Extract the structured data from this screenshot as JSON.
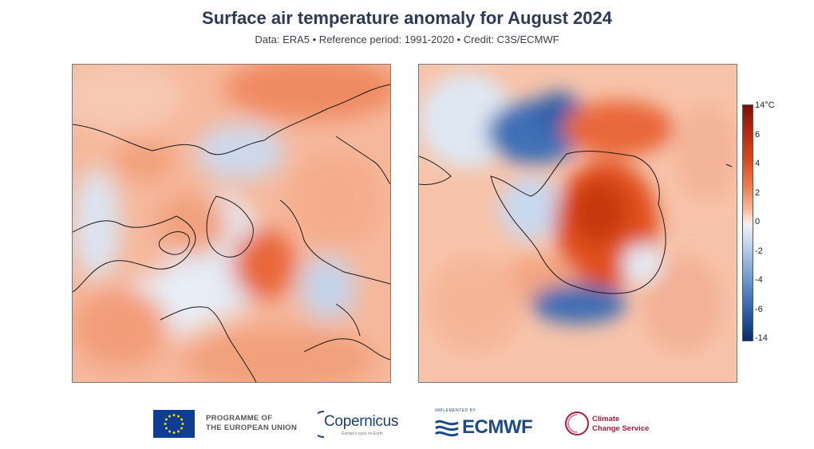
{
  "header": {
    "title": "Surface air temperature anomaly for August 2024",
    "subtitle": "Data: ERA5 • Reference period: 1991-2020 • Credit: C3S/ECMWF"
  },
  "maps": {
    "north": {
      "hemisphere": "Arctic / Northern Hemisphere polar view"
    },
    "south": {
      "hemisphere": "Antarctic / Southern Hemisphere polar view"
    }
  },
  "colorbar": {
    "unit": "°C",
    "ticks": [
      "14°C",
      "6",
      "4",
      "2",
      "0",
      "-2",
      "-4",
      "-6",
      "-14"
    ],
    "values": [
      14,
      6,
      4,
      2,
      0,
      -2,
      -4,
      -6,
      -14
    ],
    "warm_color": "#b2260e",
    "cold_color": "#1f4e98",
    "neutral_color": "#f2f2f2"
  },
  "footer": {
    "eu_line1": "PROGRAMME OF",
    "eu_line2": "THE EUROPEAN UNION",
    "copernicus": "Copernicus",
    "copernicus_sub": "Europe's eyes on Earth",
    "ecmwf_sub": "IMPLEMENTED BY",
    "ecmwf": "ECMWF",
    "c3s_line1": "Climate",
    "c3s_line2": "Change Service"
  }
}
